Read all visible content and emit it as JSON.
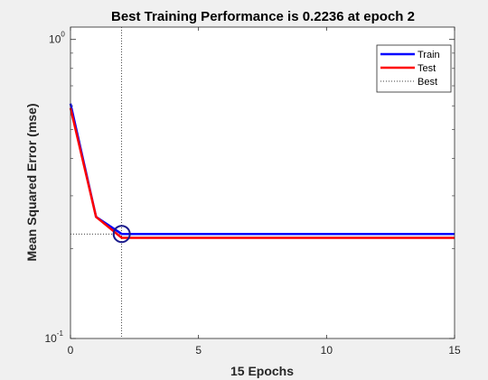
{
  "chart_data": {
    "type": "line",
    "title": "Best Training Performance is 0.2236 at epoch 2",
    "xlabel": "15 Epochs",
    "ylabel": "Mean Squared Error  (mse)",
    "xlim": [
      0,
      15
    ],
    "ylim": [
      0.1,
      1.1
    ],
    "yscale": "log",
    "x_ticks": [
      "0",
      "5",
      "10",
      "15"
    ],
    "y_ticks": [
      {
        "value": 1,
        "base": "10",
        "exp": "0"
      },
      {
        "value": 0.1,
        "base": "10",
        "exp": "-1"
      }
    ],
    "grid": false,
    "legend_position": "top-right",
    "series": [
      {
        "name": "Train",
        "color": "#0000ff",
        "style": "solid",
        "x": [
          0,
          1,
          2,
          3,
          4,
          5,
          6,
          7,
          8,
          9,
          10,
          11,
          12,
          13,
          14,
          15
        ],
        "y": [
          0.61,
          0.255,
          0.2236,
          0.2236,
          0.2236,
          0.2236,
          0.2236,
          0.2236,
          0.2236,
          0.2236,
          0.2236,
          0.2236,
          0.2236,
          0.2236,
          0.2236,
          0.2236
        ]
      },
      {
        "name": "Test",
        "color": "#ff0000",
        "style": "solid",
        "x": [
          0,
          1,
          2,
          3,
          4,
          5,
          6,
          7,
          8,
          9,
          10,
          11,
          12,
          13,
          14,
          15
        ],
        "y": [
          0.59,
          0.255,
          0.217,
          0.217,
          0.217,
          0.217,
          0.217,
          0.217,
          0.217,
          0.217,
          0.217,
          0.217,
          0.217,
          0.217,
          0.217,
          0.217
        ]
      }
    ],
    "best": {
      "name": "Best",
      "epoch": 2,
      "value": 0.2236,
      "color": "#000000",
      "style": "dotted"
    }
  }
}
